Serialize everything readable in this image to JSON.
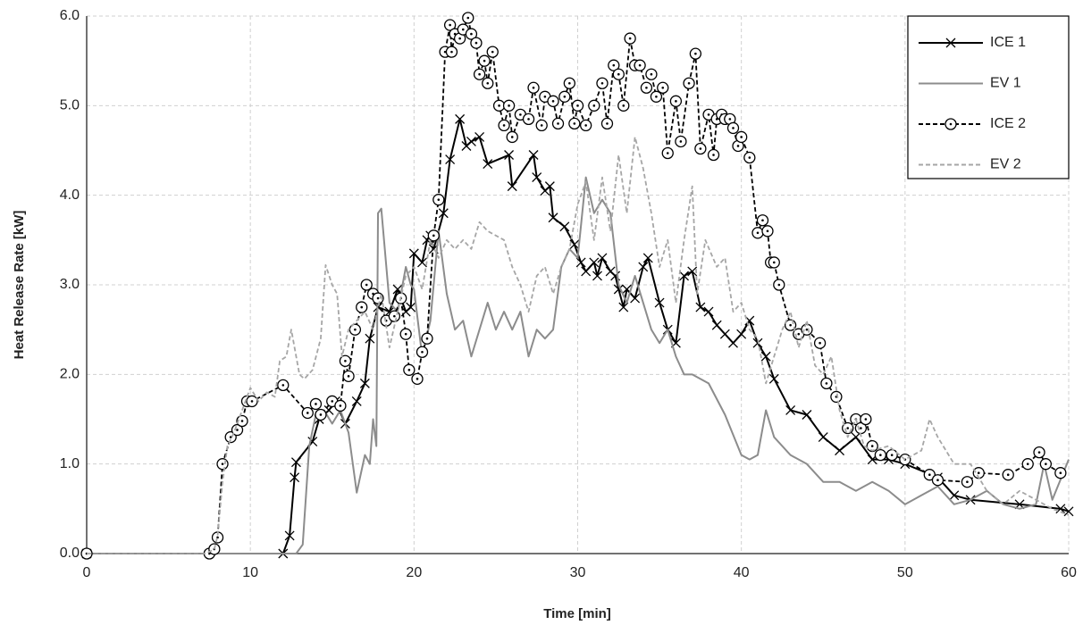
{
  "chart_data": {
    "type": "line",
    "x_label": "Time [min]",
    "y_label": "Heat Release Rate  [kW]",
    "xlim": [
      0,
      60
    ],
    "xticks": [
      0,
      10,
      20,
      30,
      40,
      50,
      60
    ],
    "ylim": [
      0,
      6
    ],
    "yticks": [
      {
        "value": 0,
        "label": "0.0"
      },
      {
        "value": 1,
        "label": "1.0"
      },
      {
        "value": 2,
        "label": "2.0"
      },
      {
        "value": 3,
        "label": "3.0"
      },
      {
        "value": 4,
        "label": "4.0"
      },
      {
        "value": 5,
        "label": "5.0"
      },
      {
        "value": 6,
        "label": "6.0"
      }
    ],
    "grid": true,
    "legend": "top-right",
    "series": [
      {
        "name": "ICE 1",
        "color": "#000000",
        "dash": false,
        "marker": "x",
        "x": [
          0,
          12,
          12.4,
          12.7,
          12.8,
          13.8,
          14.2,
          14.8,
          15.2,
          15.8,
          16.5,
          17,
          17.3,
          17.8,
          18.5,
          19,
          19.5,
          19.8,
          20,
          20.5,
          20.8,
          21,
          21.2,
          21.8,
          22.2,
          22.8,
          23.2,
          23.5,
          24,
          24.5,
          25.8,
          26,
          27.3,
          27.5,
          28,
          28.3,
          28.5,
          29.2,
          29.8,
          30.2,
          30.5,
          31,
          31.2,
          31.5,
          32,
          32.3,
          32.5,
          32.8,
          33,
          33.5,
          34,
          34.3,
          35,
          35.5,
          36,
          36.5,
          37,
          37.5,
          38,
          38.5,
          39,
          39.5,
          40,
          40.5,
          41,
          41.5,
          42,
          43,
          44,
          45,
          46,
          47,
          48,
          49,
          50,
          52,
          53,
          54,
          57,
          59.5,
          60
        ],
        "values": [
          0,
          0,
          0.2,
          0.85,
          1.02,
          1.25,
          1.5,
          1.6,
          1.7,
          1.45,
          1.7,
          1.9,
          2.4,
          2.75,
          2.7,
          2.95,
          2.7,
          2.75,
          3.35,
          3.25,
          3.5,
          3.55,
          3.4,
          3.8,
          4.4,
          4.85,
          4.55,
          4.6,
          4.65,
          4.35,
          4.45,
          4.1,
          4.45,
          4.2,
          4.05,
          4.1,
          3.75,
          3.65,
          3.45,
          3.25,
          3.15,
          3.25,
          3.1,
          3.3,
          3.15,
          3.1,
          2.95,
          2.75,
          2.95,
          2.85,
          3.2,
          3.3,
          2.8,
          2.5,
          2.35,
          3.1,
          3.15,
          2.75,
          2.7,
          2.55,
          2.45,
          2.35,
          2.45,
          2.6,
          2.35,
          2.2,
          1.95,
          1.6,
          1.55,
          1.3,
          1.15,
          1.3,
          1.05,
          1.05,
          1.0,
          0.85,
          0.65,
          0.6,
          0.55,
          0.5,
          0.47
        ]
      },
      {
        "name": "EV 1",
        "color": "#8c8c8c",
        "dash": false,
        "marker": "none",
        "x": [
          0,
          12.8,
          13.2,
          13.6,
          14,
          14.5,
          15,
          15.5,
          16,
          16.5,
          17,
          17.3,
          17.5,
          17.7,
          17.8,
          18,
          18.5,
          19,
          19.5,
          19.8,
          20,
          20.5,
          21,
          21.5,
          22,
          22.5,
          23,
          23.5,
          24,
          24.5,
          25,
          25.5,
          26,
          26.5,
          27,
          27.5,
          28,
          28.5,
          29,
          29.5,
          30,
          30.5,
          31,
          31.5,
          32,
          32.5,
          33,
          33.5,
          34,
          34.5,
          35,
          35.5,
          36,
          36.5,
          37,
          38,
          39,
          40,
          40.5,
          41,
          41.5,
          42,
          43,
          44,
          45,
          46,
          47,
          48,
          49,
          50,
          51,
          52,
          53,
          54,
          55,
          56,
          57,
          58,
          58.5,
          59,
          60
        ],
        "values": [
          0,
          0,
          0.1,
          1.2,
          1.55,
          1.6,
          1.45,
          1.6,
          1.35,
          0.68,
          1.1,
          1.0,
          1.5,
          1.2,
          3.8,
          3.85,
          2.8,
          2.7,
          3.2,
          3.0,
          2.95,
          2.2,
          2.6,
          3.6,
          2.9,
          2.5,
          2.6,
          2.2,
          2.5,
          2.8,
          2.5,
          2.7,
          2.5,
          2.7,
          2.2,
          2.5,
          2.4,
          2.5,
          3.2,
          3.4,
          3.3,
          4.2,
          3.8,
          3.95,
          3.8,
          3.0,
          2.8,
          3.1,
          2.8,
          2.5,
          2.35,
          2.5,
          2.2,
          2.0,
          2.0,
          1.9,
          1.55,
          1.1,
          1.05,
          1.1,
          1.6,
          1.3,
          1.1,
          1.0,
          0.8,
          0.8,
          0.7,
          0.8,
          0.7,
          0.55,
          0.65,
          0.75,
          0.55,
          0.6,
          0.7,
          0.55,
          0.5,
          0.55,
          1.0,
          0.6,
          1.05
        ]
      },
      {
        "name": "ICE 2",
        "color": "#000000",
        "dash": true,
        "marker": "circle",
        "x": [
          0,
          7.5,
          7.8,
          8,
          8.3,
          8.8,
          9.2,
          9.5,
          9.8,
          10.1,
          12,
          13.5,
          14,
          14.3,
          15,
          15.5,
          15.8,
          16,
          16.4,
          16.8,
          17.1,
          17.5,
          17.8,
          18.3,
          18.8,
          19.2,
          19.5,
          19.7,
          20.2,
          20.5,
          20.8,
          21.2,
          21.5,
          21.9,
          22.2,
          22.3,
          22.5,
          22.8,
          23,
          23.3,
          23.5,
          23.8,
          24,
          24.3,
          24.5,
          24.8,
          25.2,
          25.5,
          25.8,
          26,
          26.5,
          27,
          27.3,
          27.8,
          28,
          28.5,
          28.8,
          29.2,
          29.5,
          29.8,
          30,
          30.5,
          31,
          31.5,
          31.8,
          32.2,
          32.5,
          32.8,
          33.2,
          33.5,
          33.8,
          34.2,
          34.5,
          34.8,
          35.2,
          35.5,
          36,
          36.3,
          36.8,
          37.2,
          37.5,
          38,
          38.3,
          38.5,
          38.8,
          39,
          39.3,
          39.5,
          39.8,
          40,
          40.5,
          41,
          41.3,
          41.6,
          41.8,
          42,
          42.3,
          43,
          43.5,
          44,
          44.8,
          45.2,
          45.8,
          46.5,
          47,
          47.3,
          47.6,
          48,
          48.5,
          49.2,
          50,
          51.5,
          52,
          53.8,
          54.5,
          56.3,
          57.5,
          58.2,
          58.6,
          59.5
        ],
        "values": [
          0,
          0,
          0.05,
          0.18,
          1.0,
          1.3,
          1.38,
          1.48,
          1.7,
          1.7,
          1.88,
          1.57,
          1.67,
          1.55,
          1.7,
          1.65,
          2.15,
          1.98,
          2.5,
          2.75,
          3.0,
          2.9,
          2.85,
          2.6,
          2.65,
          2.85,
          2.45,
          2.05,
          1.95,
          2.25,
          2.4,
          3.55,
          3.95,
          5.6,
          5.9,
          5.6,
          5.8,
          5.75,
          5.85,
          5.98,
          5.8,
          5.7,
          5.35,
          5.5,
          5.25,
          5.6,
          5.0,
          4.78,
          5.0,
          4.65,
          4.9,
          4.85,
          5.2,
          4.78,
          5.1,
          5.05,
          4.8,
          5.1,
          5.25,
          4.8,
          5.0,
          4.78,
          5.0,
          5.25,
          4.8,
          5.45,
          5.35,
          5.0,
          5.75,
          5.45,
          5.45,
          5.2,
          5.35,
          5.1,
          5.2,
          4.47,
          5.05,
          4.6,
          5.25,
          5.58,
          4.52,
          4.9,
          4.45,
          4.85,
          4.9,
          4.85,
          4.85,
          4.75,
          4.55,
          4.65,
          4.42,
          3.58,
          3.72,
          3.6,
          3.25,
          3.25,
          3.0,
          2.55,
          2.45,
          2.5,
          2.35,
          1.9,
          1.75,
          1.4,
          1.5,
          1.4,
          1.5,
          1.2,
          1.1,
          1.1,
          1.05,
          0.88,
          0.82,
          0.8,
          0.9,
          0.88,
          1.0,
          1.13,
          1.0,
          0.9
        ]
      },
      {
        "name": "EV 2",
        "color": "#a6a6a6",
        "dash": true,
        "marker": "none",
        "x": [
          0,
          7.3,
          7.8,
          8,
          8.3,
          8.6,
          9,
          9.5,
          10,
          10.5,
          11,
          11.5,
          11.8,
          12.2,
          12.5,
          13,
          13.3,
          13.8,
          14.3,
          14.6,
          15,
          15.3,
          15.6,
          16,
          16.5,
          17,
          17.5,
          18,
          18.5,
          19,
          19.5,
          20,
          20.5,
          21,
          21.5,
          22,
          22.5,
          23,
          23.5,
          24,
          24.5,
          25,
          25.5,
          26,
          26.5,
          27,
          27.5,
          28,
          28.5,
          29,
          29.5,
          30,
          30.5,
          31,
          31.5,
          32,
          32.5,
          33,
          33.5,
          34,
          34.5,
          35,
          35.5,
          36,
          36.5,
          37,
          37.3,
          37.8,
          38.5,
          39,
          39.5,
          40,
          40.5,
          41,
          41.5,
          42,
          42.5,
          43,
          43.5,
          44,
          44.5,
          45,
          45.5,
          46,
          46.5,
          47,
          47.5,
          48,
          49,
          50,
          51,
          51.5,
          52,
          53,
          54,
          55,
          56,
          57,
          58,
          59,
          60
        ],
        "values": [
          0,
          0,
          0.05,
          0.2,
          0.8,
          1.2,
          1.35,
          1.6,
          1.85,
          1.7,
          1.8,
          1.75,
          2.15,
          2.2,
          2.5,
          2.0,
          1.95,
          2.05,
          2.4,
          3.22,
          3.0,
          2.9,
          2.2,
          2.5,
          2.6,
          2.7,
          2.5,
          2.9,
          2.3,
          2.7,
          3.1,
          3.2,
          2.95,
          3.5,
          3.3,
          3.5,
          3.4,
          3.5,
          3.4,
          3.7,
          3.6,
          3.55,
          3.5,
          3.2,
          3.0,
          2.7,
          3.1,
          3.2,
          2.9,
          3.2,
          3.4,
          3.9,
          4.15,
          3.5,
          4.2,
          3.6,
          4.45,
          3.8,
          4.65,
          4.3,
          3.8,
          3.2,
          3.5,
          2.8,
          3.5,
          4.1,
          2.9,
          3.5,
          3.2,
          3.3,
          2.7,
          2.8,
          2.5,
          2.4,
          1.9,
          2.2,
          2.5,
          2.7,
          2.3,
          2.6,
          2.1,
          2.0,
          2.2,
          1.6,
          1.3,
          1.5,
          1.2,
          1.15,
          1.2,
          1.05,
          1.15,
          1.5,
          1.3,
          1.0,
          1.0,
          0.7,
          0.55,
          0.7,
          0.6,
          0.5,
          0.43
        ]
      }
    ]
  }
}
